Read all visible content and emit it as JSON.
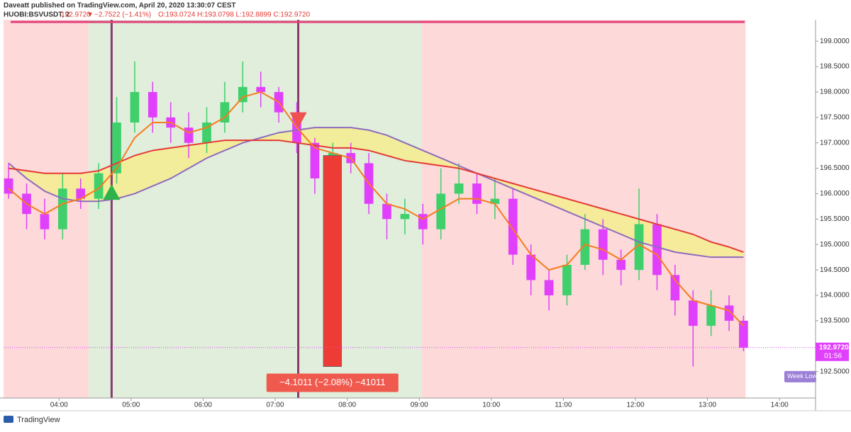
{
  "header": {
    "publisher": "Daveatt published on TradingView.com, April 20, 2020 13:30:07 CEST",
    "symbol": "HUOBI:BSVUSDT, 2",
    "price": "192.9720",
    "arrow": "▼",
    "change": "−2.7522 (−1.41%)",
    "ohlc": "O:193.0724 H:193.0798 L:192.8899 C:192.9720"
  },
  "footer": "TradingView",
  "chart_data": {
    "type": "candlestick",
    "xlim": [
      3.23,
      14.5
    ],
    "ylim": [
      191.98,
      199.42
    ],
    "xticks": [
      {
        "value": 4,
        "label": "04:00"
      },
      {
        "value": 5,
        "label": "05:00"
      },
      {
        "value": 6,
        "label": "06:00"
      },
      {
        "value": 7,
        "label": "07:00"
      },
      {
        "value": 8,
        "label": "08:00"
      },
      {
        "value": 9,
        "label": "09:00"
      },
      {
        "value": 10,
        "label": "10:00"
      },
      {
        "value": 11,
        "label": "11:00"
      },
      {
        "value": 12,
        "label": "12:00"
      },
      {
        "value": 13,
        "label": "13:00"
      },
      {
        "value": 14,
        "label": "14:00"
      }
    ],
    "yticks": [
      {
        "value": 192.5,
        "label": "192.5000"
      },
      {
        "value": 193,
        "label": "193.0000"
      },
      {
        "value": 193.5,
        "label": "193.5000"
      },
      {
        "value": 194,
        "label": "194.0000"
      },
      {
        "value": 194.5,
        "label": "194.5000"
      },
      {
        "value": 195,
        "label": "195.0000"
      },
      {
        "value": 195.5,
        "label": "195.5000"
      },
      {
        "value": 196,
        "label": "196.0000"
      },
      {
        "value": 196.5,
        "label": "196.5000"
      },
      {
        "value": 197,
        "label": "197.0000"
      },
      {
        "value": 197.5,
        "label": "197.5000"
      },
      {
        "value": 198,
        "label": "198.0000"
      },
      {
        "value": 198.5,
        "label": "198.5000"
      },
      {
        "value": 199,
        "label": "199.0000"
      }
    ],
    "zones": [
      {
        "from": 3.23,
        "to": 4.41,
        "color": "#fdd9d9"
      },
      {
        "from": 4.41,
        "to": 9.03,
        "color": "#e0eedb"
      },
      {
        "from": 9.03,
        "to": 13.53,
        "color": "#fdd9d9"
      }
    ],
    "x": [
      3.3,
      3.55,
      3.8,
      4.05,
      4.3,
      4.55,
      4.8,
      5.05,
      5.3,
      5.55,
      5.8,
      6.05,
      6.3,
      6.55,
      6.8,
      7.05,
      7.3,
      7.55,
      7.8,
      8.05,
      8.3,
      8.55,
      8.8,
      9.05,
      9.3,
      9.55,
      9.8,
      10.05,
      10.3,
      10.55,
      10.8,
      11.05,
      11.3,
      11.55,
      11.8,
      12.05,
      12.3,
      12.55,
      12.8,
      13.05,
      13.3,
      13.5
    ],
    "open": [
      196.3,
      196.0,
      195.6,
      195.3,
      196.1,
      195.9,
      196.4,
      197.4,
      198.0,
      197.5,
      197.3,
      197.0,
      197.4,
      197.8,
      198.1,
      198.0,
      197.6,
      197.0,
      196.3,
      196.8,
      196.6,
      195.8,
      195.5,
      195.6,
      195.3,
      196.0,
      196.2,
      195.8,
      195.9,
      194.8,
      194.3,
      194.0,
      194.6,
      195.3,
      194.7,
      194.5,
      195.4,
      194.4,
      193.9,
      193.4,
      193.8,
      193.5
    ],
    "high": [
      196.6,
      196.2,
      195.9,
      196.4,
      196.3,
      196.6,
      197.9,
      198.6,
      198.2,
      197.8,
      197.6,
      197.7,
      198.2,
      198.6,
      198.4,
      198.1,
      197.8,
      197.1,
      197.0,
      197.0,
      196.8,
      196.0,
      195.9,
      195.8,
      196.5,
      196.6,
      196.4,
      196.3,
      196.1,
      195.0,
      194.5,
      194.8,
      195.6,
      195.5,
      194.9,
      196.1,
      195.6,
      194.6,
      194.1,
      194.1,
      194.0,
      193.6
    ],
    "low": [
      195.9,
      195.3,
      195.1,
      195.1,
      195.7,
      195.7,
      196.2,
      197.2,
      197.2,
      197.0,
      196.7,
      196.8,
      197.2,
      197.6,
      197.7,
      197.4,
      196.8,
      196.0,
      196.0,
      196.4,
      195.6,
      195.1,
      195.2,
      195.0,
      195.1,
      195.8,
      195.6,
      195.5,
      194.6,
      194.0,
      193.7,
      193.8,
      194.5,
      194.4,
      194.2,
      194.3,
      194.1,
      193.6,
      192.6,
      193.2,
      193.3,
      192.9
    ],
    "close": [
      196.0,
      195.6,
      195.3,
      196.1,
      195.9,
      196.4,
      197.4,
      198.0,
      197.5,
      197.3,
      197.0,
      197.4,
      197.8,
      198.1,
      198.0,
      197.6,
      197.0,
      196.3,
      196.8,
      196.6,
      195.8,
      195.5,
      195.6,
      195.3,
      196.0,
      196.2,
      195.8,
      195.9,
      194.8,
      194.3,
      194.0,
      194.6,
      195.3,
      194.7,
      194.5,
      195.4,
      194.4,
      193.9,
      193.4,
      193.8,
      193.5,
      192.97
    ],
    "up_color": "#3fcf6b",
    "down_color": "#e040fb",
    "series": [
      {
        "color": "#f57c1f",
        "values": [
          196.1,
          195.8,
          195.6,
          195.8,
          195.9,
          196.1,
          196.5,
          197.1,
          197.4,
          197.4,
          197.2,
          197.3,
          197.5,
          197.9,
          198.0,
          197.8,
          197.3,
          196.9,
          196.8,
          196.7,
          196.2,
          195.8,
          195.7,
          195.5,
          195.7,
          195.9,
          195.9,
          195.8,
          195.3,
          194.8,
          194.5,
          194.6,
          195.0,
          194.9,
          194.7,
          195.0,
          194.8,
          194.3,
          193.9,
          193.8,
          193.7,
          193.4
        ]
      },
      {
        "color": "#e53935",
        "values": [
          196.5,
          196.45,
          196.4,
          196.4,
          196.4,
          196.45,
          196.6,
          196.75,
          196.85,
          196.9,
          196.95,
          197.0,
          197.05,
          197.05,
          197.05,
          197.05,
          197.0,
          196.95,
          196.9,
          196.9,
          196.85,
          196.75,
          196.65,
          196.6,
          196.55,
          196.5,
          196.4,
          196.3,
          196.2,
          196.1,
          196.0,
          195.9,
          195.8,
          195.7,
          195.6,
          195.5,
          195.4,
          195.3,
          195.2,
          195.05,
          194.95,
          194.85
        ]
      },
      {
        "color": "#8e6bbf",
        "values": [
          196.6,
          196.3,
          196.05,
          195.9,
          195.85,
          195.85,
          195.9,
          196.0,
          196.15,
          196.3,
          196.5,
          196.7,
          196.85,
          197.0,
          197.1,
          197.2,
          197.25,
          197.3,
          197.3,
          197.3,
          197.25,
          197.15,
          197.0,
          196.85,
          196.7,
          196.55,
          196.4,
          196.25,
          196.1,
          195.95,
          195.8,
          195.65,
          195.5,
          195.35,
          195.2,
          195.05,
          194.95,
          194.85,
          194.8,
          194.75,
          194.75,
          194.75
        ]
      }
    ],
    "cloud_color": "#f5ec8f",
    "signals": [
      {
        "x": 4.73,
        "y": 195.88,
        "color": "#2eb34a"
      },
      {
        "x": 7.32,
        "y": 197.6,
        "color": "#f05050"
      }
    ],
    "measure": {
      "x1": 7.67,
      "x2": 7.92,
      "from": 196.75,
      "to": 192.6,
      "label": "−4.1011 (−2.08%) −41011"
    },
    "last_price": {
      "value": 192.972,
      "label": "192.9720"
    },
    "countdown": "01:56",
    "week_low": {
      "value": 192.4,
      "label": "Week Low"
    }
  }
}
